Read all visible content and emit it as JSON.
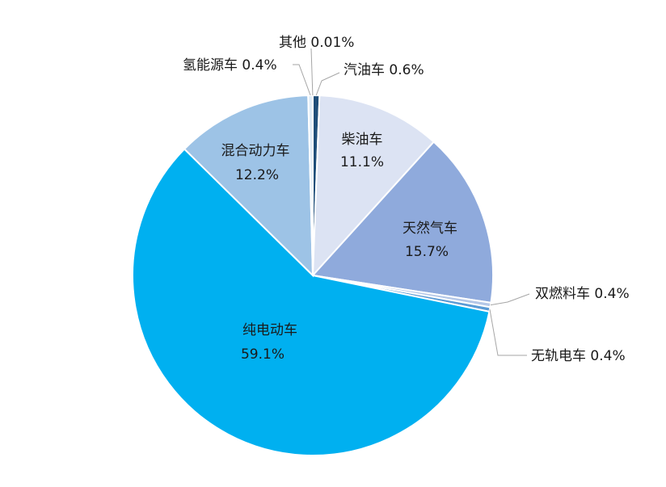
{
  "chart_data": {
    "type": "pie",
    "slices": [
      {
        "label": "汽油车",
        "value": 0.6,
        "display": "汽油车 0.6%",
        "color": "#1f4e79"
      },
      {
        "label": "柴油车",
        "value": 11.1,
        "display": "11.1%",
        "color": "#dce3f3"
      },
      {
        "label": "天然气车",
        "value": 15.7,
        "display": "15.7%",
        "color": "#8faadc"
      },
      {
        "label": "双燃料车",
        "value": 0.4,
        "display": "双燃料车 0.4%",
        "color": "#b4c7e7"
      },
      {
        "label": "无轨电车",
        "value": 0.4,
        "display": "无轨电车 0.4%",
        "color": "#5b9bd5"
      },
      {
        "label": "纯电动车",
        "value": 59.1,
        "display": "59.1%",
        "color": "#00b0f0"
      },
      {
        "label": "混合动力车",
        "value": 12.2,
        "display": "12.2%",
        "color": "#9dc3e6"
      },
      {
        "label": "氢能源车",
        "value": 0.4,
        "display": "氢能源车 0.4%",
        "color": "#deebf7"
      },
      {
        "label": "其他",
        "value": 0.01,
        "display": "其他 0.01%",
        "color": "#2e75b6"
      }
    ]
  }
}
